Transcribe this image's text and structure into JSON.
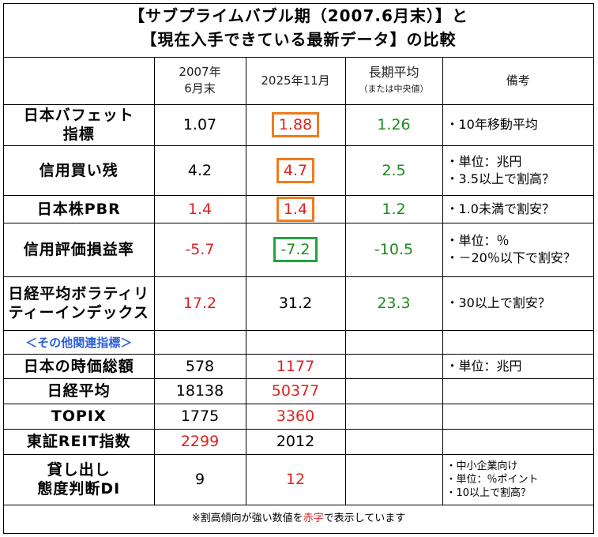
{
  "title": {
    "line1": "【サブプライムバブル期（2007.6月末）】と",
    "line2": "【現在入手できている最新データ】の比較"
  },
  "header": {
    "col_2007_line1": "2007年",
    "col_2007_line2": "6月末",
    "col_2025": "2025年11月",
    "col_avg": "長期平均",
    "col_avg_sub": "（または中央値）",
    "col_note": "備考"
  },
  "rows": [
    {
      "label1": "日本バフェット",
      "label2": "指標",
      "v2007": "1.07",
      "v2025": "1.88",
      "avg": "1.26",
      "note1": "・10年移動平均",
      "note2": ""
    },
    {
      "label1": "信用買い残",
      "label2": "",
      "v2007": "4.2",
      "v2025": "4.7",
      "avg": "2.5",
      "note1": "・単位：兆円",
      "note2": "・3.5以上で割高？"
    },
    {
      "label1": "日本株PBR",
      "label2": "",
      "v2007": "1.4",
      "v2025": "1.4",
      "avg": "1.2",
      "note1": "・1.0未満で割安？",
      "note2": ""
    },
    {
      "label1": "信用評価損益率",
      "label2": "",
      "v2007": "-5.7",
      "v2025": "-7.2",
      "avg": "-10.5",
      "note1": "・単位：％",
      "note2": "・－20％以下で割安？"
    },
    {
      "label1": "日経平均ボラティリ",
      "label2": "ティーインデックス",
      "v2007": "17.2",
      "v2025": "31.2",
      "avg": "23.3",
      "note1": "・30以上で割安？",
      "note2": ""
    }
  ],
  "section_label": "＜その他関連指標＞",
  "other_rows": [
    {
      "label": "日本の時価総額",
      "v2007": "578",
      "v2025": "1177",
      "note": "・単位：兆円"
    },
    {
      "label": "日経平均",
      "v2007": "18138",
      "v2025": "50377",
      "note": ""
    },
    {
      "label": "TOPIX",
      "v2007": "1775",
      "v2025": "3360",
      "note": ""
    },
    {
      "label": "東証REIT指数",
      "v2007": "2299",
      "v2025": "2012",
      "note": ""
    }
  ],
  "di_row": {
    "label1": "貸し出し",
    "label2": "態度判断DI",
    "v2007": "9",
    "v2025": "12",
    "note1": "・中小企業向け",
    "note2": "・単位：％ポイント",
    "note3": "・10以上で割高？"
  },
  "footer": {
    "prefix": "※割高傾向が強い数値を",
    "red_word": "赤字",
    "suffix": "で表示しています"
  },
  "colors": {
    "red": "#e02020",
    "green": "#1e8a1e",
    "orange_box": "#f07b1e",
    "green_box": "#1fa540",
    "section_blue": "#2a5fd8"
  }
}
